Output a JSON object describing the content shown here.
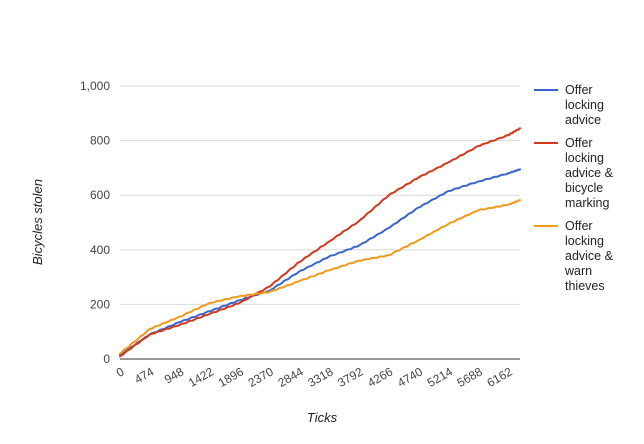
{
  "chart_data": {
    "type": "line",
    "title": "",
    "xlabel": "Ticks",
    "ylabel": "Bicycles stolen",
    "xlim": [
      0,
      6350
    ],
    "ylim": [
      0,
      1000
    ],
    "x_ticks": [
      0,
      474,
      948,
      1422,
      1896,
      2370,
      2844,
      3318,
      3792,
      4266,
      4740,
      5214,
      5688,
      6162
    ],
    "y_ticks": [
      0,
      200,
      400,
      600,
      800,
      1000
    ],
    "y_tick_labels": [
      "0",
      "200",
      "400",
      "600",
      "800",
      "1,000"
    ],
    "grid": true,
    "legend_position": "right",
    "series": [
      {
        "name": "Offer locking advice",
        "name_lines": [
          "Offer",
          "locking",
          "advice"
        ],
        "color": "#3a66cc",
        "points": [
          [
            0,
            15
          ],
          [
            474,
            90
          ],
          [
            948,
            135
          ],
          [
            1422,
            175
          ],
          [
            1896,
            215
          ],
          [
            2370,
            250
          ],
          [
            2844,
            320
          ],
          [
            3318,
            375
          ],
          [
            3792,
            415
          ],
          [
            4266,
            480
          ],
          [
            4740,
            555
          ],
          [
            5214,
            615
          ],
          [
            5688,
            650
          ],
          [
            6162,
            680
          ],
          [
            6350,
            695
          ]
        ]
      },
      {
        "name": "Offer locking advice & bicycle marking",
        "name_lines": [
          "Offer",
          "locking",
          "advice &",
          "bicycle",
          "marking"
        ],
        "color": "#d0391c",
        "points": [
          [
            0,
            10
          ],
          [
            474,
            90
          ],
          [
            948,
            125
          ],
          [
            1422,
            165
          ],
          [
            1896,
            205
          ],
          [
            2370,
            265
          ],
          [
            2844,
            355
          ],
          [
            3318,
            430
          ],
          [
            3792,
            505
          ],
          [
            4266,
            600
          ],
          [
            4740,
            665
          ],
          [
            5214,
            720
          ],
          [
            5688,
            780
          ],
          [
            6162,
            820
          ],
          [
            6350,
            845
          ]
        ]
      },
      {
        "name": "Offer locking advice & warn thieves",
        "name_lines": [
          "Offer",
          "locking",
          "advice &",
          "warn",
          "thieves"
        ],
        "color": "#f09a1a",
        "points": [
          [
            0,
            20
          ],
          [
            474,
            110
          ],
          [
            948,
            155
          ],
          [
            1422,
            205
          ],
          [
            1896,
            230
          ],
          [
            2370,
            245
          ],
          [
            2844,
            285
          ],
          [
            3318,
            325
          ],
          [
            3792,
            360
          ],
          [
            4266,
            380
          ],
          [
            4740,
            435
          ],
          [
            5214,
            495
          ],
          [
            5688,
            545
          ],
          [
            6162,
            565
          ],
          [
            6350,
            582
          ]
        ]
      }
    ]
  }
}
